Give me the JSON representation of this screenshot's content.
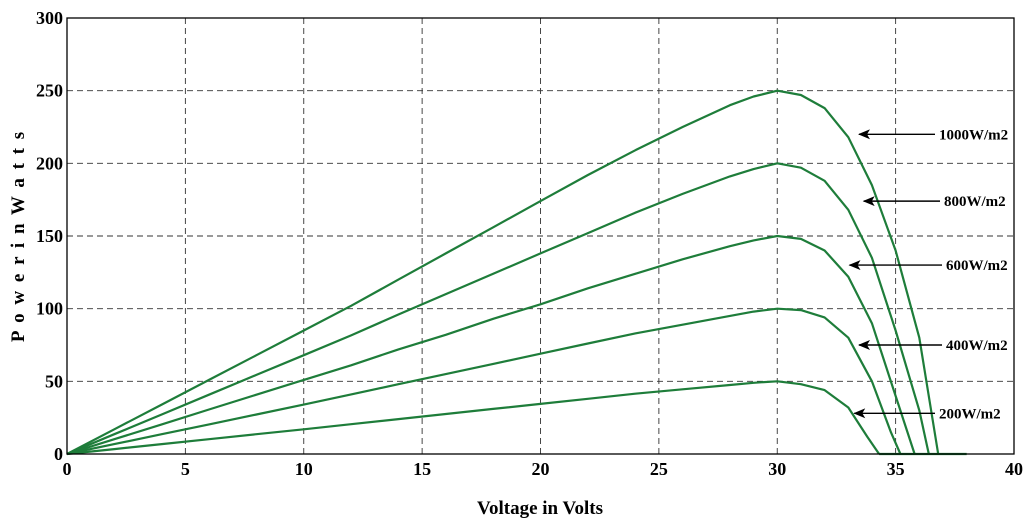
{
  "chart_data": {
    "type": "line",
    "title": "",
    "xlabel": "Voltage in Volts",
    "ylabel": "P o w e r  i n  W a t t s",
    "xlim": [
      0,
      40
    ],
    "ylim": [
      0,
      300
    ],
    "x_ticks": [
      "0",
      "5",
      "10",
      "15",
      "20",
      "25",
      "30",
      "35",
      "40"
    ],
    "y_ticks": [
      "0",
      "50",
      "100",
      "150",
      "200",
      "250",
      "300"
    ],
    "grid": true,
    "line_color": "#1e7d3a",
    "series": [
      {
        "name": "1000W/m2",
        "points": [
          [
            0,
            0
          ],
          [
            2,
            17
          ],
          [
            4,
            34
          ],
          [
            6,
            51
          ],
          [
            8,
            68
          ],
          [
            10,
            85
          ],
          [
            12,
            102
          ],
          [
            14,
            120
          ],
          [
            16,
            138
          ],
          [
            18,
            156
          ],
          [
            20,
            174
          ],
          [
            22,
            192
          ],
          [
            24,
            209
          ],
          [
            26,
            225
          ],
          [
            28,
            240
          ],
          [
            29,
            246
          ],
          [
            30,
            250
          ],
          [
            31,
            247
          ],
          [
            32,
            238
          ],
          [
            33,
            218
          ],
          [
            34,
            185
          ],
          [
            35,
            140
          ],
          [
            36,
            80
          ],
          [
            36.8,
            0
          ]
        ],
        "annotation_target": [
          33.2,
          220
        ]
      },
      {
        "name": "800W/m2",
        "points": [
          [
            0,
            0
          ],
          [
            2,
            13.6
          ],
          [
            4,
            27.2
          ],
          [
            6,
            40.8
          ],
          [
            8,
            54.4
          ],
          [
            10,
            68
          ],
          [
            12,
            81.6
          ],
          [
            14,
            96
          ],
          [
            16,
            110
          ],
          [
            18,
            124
          ],
          [
            20,
            138
          ],
          [
            22,
            152
          ],
          [
            24,
            166
          ],
          [
            26,
            179
          ],
          [
            28,
            191
          ],
          [
            29,
            196
          ],
          [
            30,
            200
          ],
          [
            31,
            197
          ],
          [
            32,
            188
          ],
          [
            33,
            168
          ],
          [
            34,
            135
          ],
          [
            35,
            85
          ],
          [
            36,
            30
          ],
          [
            36.4,
            0
          ]
        ],
        "annotation_target": [
          33.4,
          174
        ]
      },
      {
        "name": "600W/m2",
        "points": [
          [
            0,
            0
          ],
          [
            2,
            10.2
          ],
          [
            4,
            20.4
          ],
          [
            6,
            30.6
          ],
          [
            8,
            40.8
          ],
          [
            10,
            51
          ],
          [
            12,
            61
          ],
          [
            14,
            72
          ],
          [
            16,
            82
          ],
          [
            18,
            93
          ],
          [
            20,
            103
          ],
          [
            22,
            114
          ],
          [
            24,
            124
          ],
          [
            26,
            134
          ],
          [
            28,
            143
          ],
          [
            29,
            147
          ],
          [
            30,
            150
          ],
          [
            31,
            148
          ],
          [
            32,
            140
          ],
          [
            33,
            122
          ],
          [
            34,
            90
          ],
          [
            35,
            40
          ],
          [
            35.8,
            0
          ]
        ],
        "annotation_target": [
          32.8,
          130
        ]
      },
      {
        "name": "400W/m2",
        "points": [
          [
            0,
            0
          ],
          [
            2,
            6.8
          ],
          [
            4,
            13.6
          ],
          [
            6,
            20.4
          ],
          [
            8,
            27.2
          ],
          [
            10,
            34
          ],
          [
            12,
            41
          ],
          [
            14,
            48
          ],
          [
            16,
            55
          ],
          [
            18,
            62
          ],
          [
            20,
            69
          ],
          [
            22,
            76
          ],
          [
            24,
            83
          ],
          [
            26,
            89
          ],
          [
            28,
            95
          ],
          [
            29,
            98
          ],
          [
            30,
            100
          ],
          [
            31,
            99
          ],
          [
            32,
            94
          ],
          [
            33,
            80
          ],
          [
            34,
            50
          ],
          [
            34.8,
            15
          ],
          [
            35.2,
            0
          ]
        ],
        "annotation_target": [
          33.2,
          75
        ]
      },
      {
        "name": "200W/m2",
        "points": [
          [
            0,
            0
          ],
          [
            2,
            3.4
          ],
          [
            4,
            6.8
          ],
          [
            6,
            10.2
          ],
          [
            8,
            13.6
          ],
          [
            10,
            17
          ],
          [
            12,
            20.5
          ],
          [
            14,
            24
          ],
          [
            16,
            27.5
          ],
          [
            18,
            31
          ],
          [
            20,
            34.5
          ],
          [
            22,
            38
          ],
          [
            24,
            41.5
          ],
          [
            26,
            44.5
          ],
          [
            28,
            47.5
          ],
          [
            29,
            49
          ],
          [
            30,
            50
          ],
          [
            31,
            48
          ],
          [
            32,
            44
          ],
          [
            33,
            32
          ],
          [
            33.8,
            12
          ],
          [
            34.3,
            0
          ]
        ],
        "annotation_target": [
          33,
          28
        ]
      }
    ],
    "flat_tail": [
      34.3,
      38
    ]
  }
}
